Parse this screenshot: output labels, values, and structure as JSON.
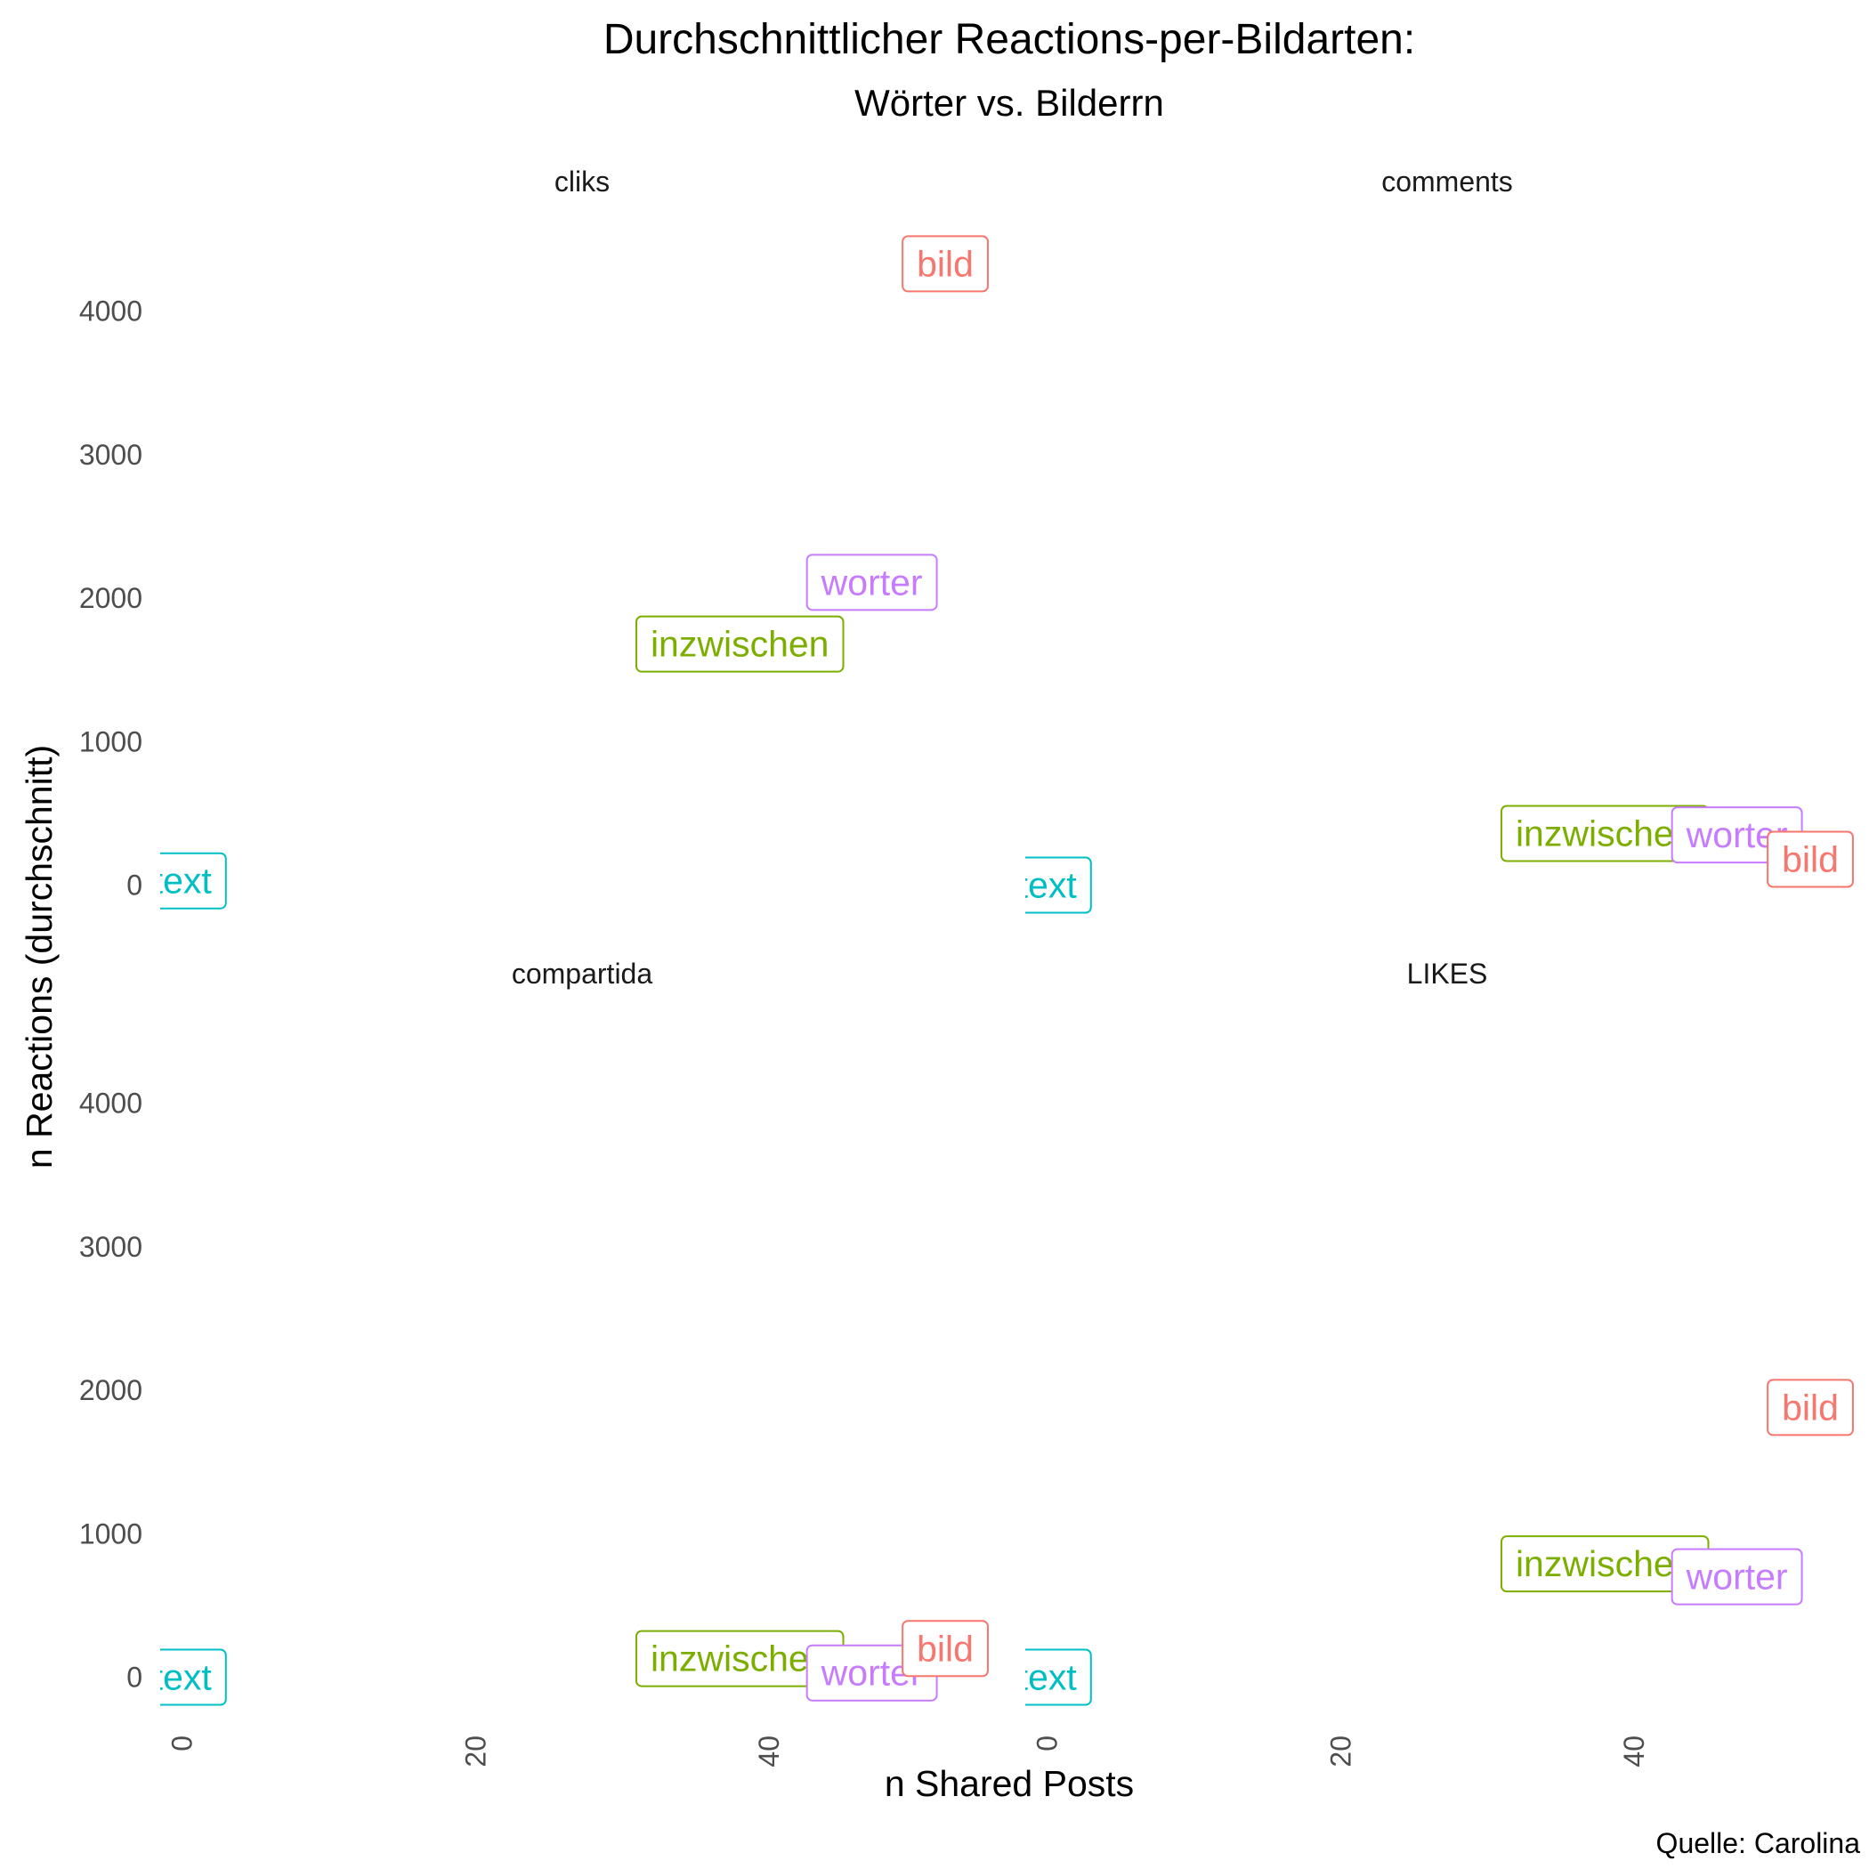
{
  "chart_data": {
    "type": "scatter",
    "geom": "label",
    "title": "Durchschnittlicher Reactions-per-Bildarten:",
    "subtitle": "Wörter vs. Bilderrn",
    "xlabel": "n Shared Posts",
    "ylabel": "n Reactions (durchschnitt)",
    "caption": "Quelle: Carolina",
    "xlim": [
      -1.5,
      56
    ],
    "ylim": [
      -220,
      4680
    ],
    "x_ticks": [
      0,
      20,
      40
    ],
    "y_ticks": [
      0,
      1000,
      2000,
      3000,
      4000
    ],
    "grid": false,
    "legend": "none",
    "colors": {
      "bild": "#F8766D",
      "inzwischen": "#7CAE00",
      "text": "#00BFC4",
      "worter": "#C77CFF"
    },
    "facets": [
      {
        "name": "cliks",
        "points": [
          {
            "label": "text",
            "x": 0,
            "y": 30
          },
          {
            "label": "inzwischen",
            "x": 38,
            "y": 1680
          },
          {
            "label": "worter",
            "x": 47,
            "y": 2110
          },
          {
            "label": "bild",
            "x": 52,
            "y": 4330
          }
        ]
      },
      {
        "name": "comments",
        "points": [
          {
            "label": "text",
            "x": 0,
            "y": 0
          },
          {
            "label": "inzwischen",
            "x": 38,
            "y": 360
          },
          {
            "label": "worter",
            "x": 47,
            "y": 350
          },
          {
            "label": "bild",
            "x": 52,
            "y": 180
          }
        ]
      },
      {
        "name": "compartida",
        "points": [
          {
            "label": "text",
            "x": 0,
            "y": 0
          },
          {
            "label": "inzwischen",
            "x": 38,
            "y": 130
          },
          {
            "label": "worter",
            "x": 47,
            "y": 30
          },
          {
            "label": "bild",
            "x": 52,
            "y": 200
          }
        ]
      },
      {
        "name": "LIKES",
        "points": [
          {
            "label": "text",
            "x": 0,
            "y": 0
          },
          {
            "label": "inzwischen",
            "x": 38,
            "y": 790
          },
          {
            "label": "worter",
            "x": 47,
            "y": 700
          },
          {
            "label": "bild",
            "x": 52,
            "y": 1880
          }
        ]
      }
    ]
  }
}
